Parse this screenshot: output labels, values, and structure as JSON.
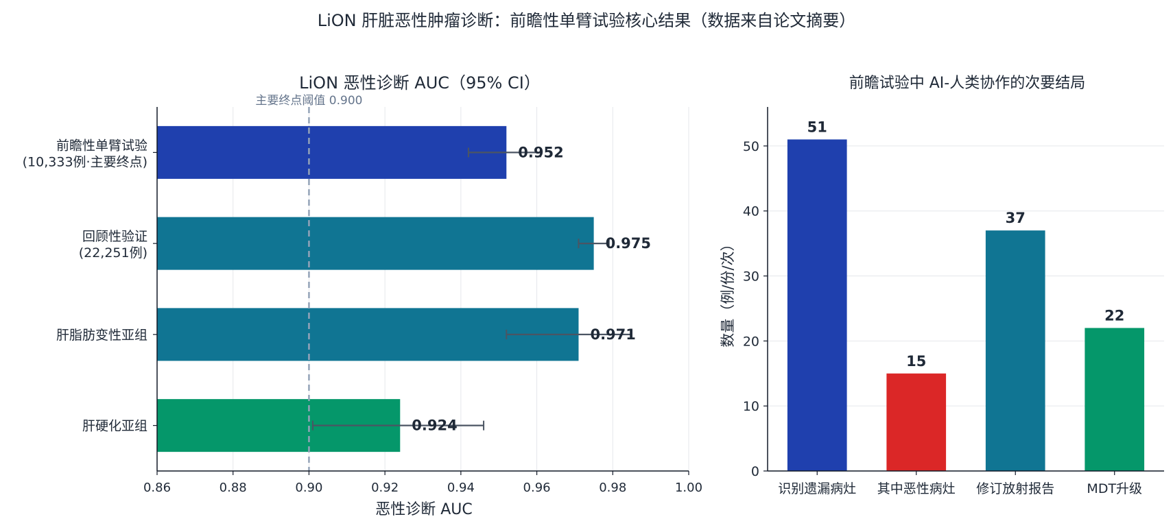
{
  "suptitle": "LiON 肝脏恶性肿瘤诊断：前瞻性单臂试验核心结果（数据来自论文摘要）",
  "colors": {
    "blue": "#1f40ae",
    "teal": "#107593",
    "green": "#05976a",
    "red": "#db2727",
    "text": "#1f2937",
    "errorbar": "#4b5563",
    "threshold": "#94a3b8",
    "grid": "#e5e7eb"
  },
  "chart_data": [
    {
      "type": "bar",
      "orientation": "horizontal",
      "title": "LiON 恶性诊断 AUC（95% CI）",
      "xlabel": "恶性诊断 AUC",
      "ylabel": "",
      "xlim": [
        0.86,
        1.0
      ],
      "xticks": [
        "0.86",
        "0.88",
        "0.90",
        "0.92",
        "0.94",
        "0.96",
        "0.98",
        "1.00"
      ],
      "grid": "vertical",
      "categories": [
        {
          "line1": "前瞻性单臂试验",
          "line2": "(10,333例·主要终点)"
        },
        {
          "line1": "回顾性验证",
          "line2": "(22,251例)"
        },
        {
          "line1": "肝脂肪变性亚组",
          "line2": ""
        },
        {
          "line1": "肝硬化亚组",
          "line2": ""
        }
      ],
      "values": [
        0.952,
        0.975,
        0.971,
        0.924
      ],
      "value_labels": [
        "0.952",
        "0.975",
        "0.971",
        "0.924"
      ],
      "ci_low": [
        0.942,
        0.971,
        0.952,
        0.901
      ],
      "ci_high": [
        0.961,
        0.979,
        0.985,
        0.946
      ],
      "bar_colors": [
        "blue",
        "teal",
        "teal",
        "green"
      ],
      "threshold": {
        "value": 0.9,
        "label": "主要终点阈值 0.900"
      }
    },
    {
      "type": "bar",
      "title": "前瞻试验中 AI-人类协作的次要结局",
      "xlabel": "",
      "ylabel": "数量（例/份/次）",
      "ylim": [
        0,
        56
      ],
      "yticks": [
        "0",
        "10",
        "20",
        "30",
        "40",
        "50"
      ],
      "grid": "horizontal",
      "categories": [
        "识别遗漏病灶",
        "其中恶性病灶",
        "修订放射报告",
        "MDT升级"
      ],
      "values": [
        51,
        15,
        37,
        22
      ],
      "value_labels": [
        "51",
        "15",
        "37",
        "22"
      ],
      "bar_colors": [
        "blue",
        "red",
        "teal",
        "green"
      ]
    }
  ]
}
